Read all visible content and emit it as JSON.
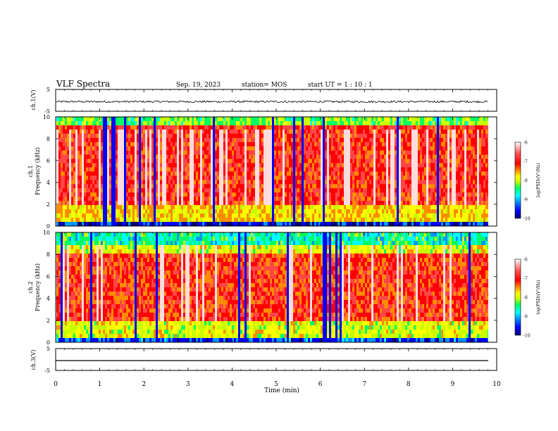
{
  "header": {
    "title": "VLF Spectra",
    "date": "Sep. 19, 2023",
    "station": "station= MOS",
    "start_ut": "start  UT  =   1 : 10 : 1"
  },
  "chart_data": [
    {
      "type": "line",
      "panel": "ch1-waveform",
      "ylabel": "ch.1(V)",
      "ylim": [
        -5,
        5
      ],
      "yticks": [
        "5",
        "-5"
      ],
      "xlim": [
        0,
        10
      ],
      "series": [
        {
          "values_note": "",
          "mean": -0.6
        }
      ]
    },
    {
      "type": "heatmap",
      "panel": "ch1-spectrogram",
      "ylabel_1": "ch.1",
      "ylabel_2": "Frequency (kHz)",
      "ylim": [
        0,
        10
      ],
      "yticks": [
        "0",
        "2",
        "4",
        "6",
        "8",
        "10"
      ],
      "xlim": [
        0,
        9.8
      ],
      "colorbar": {
        "label": "log(PSD)(V²/Hz)",
        "range": [
          -10,
          -6
        ],
        "ticks": [
          "-6",
          "-7",
          "-8",
          "-9",
          "-10"
        ]
      }
    },
    {
      "type": "heatmap",
      "panel": "ch2-spectrogram",
      "ylabel_1": "ch.2",
      "ylabel_2": "Frequency (kHz)",
      "ylim": [
        0,
        10
      ],
      "yticks": [
        "0",
        "2",
        "4",
        "6",
        "8",
        "10"
      ],
      "xlim": [
        0,
        9.8
      ],
      "colorbar": {
        "label": "log(PSD)(V²/Hz)",
        "range": [
          -10,
          -6
        ],
        "ticks": [
          "-6",
          "-7",
          "-8",
          "-9",
          "-10"
        ]
      }
    },
    {
      "type": "line",
      "panel": "ch3-waveform",
      "ylabel": "ch.3(V)",
      "ylim": [
        -5,
        5
      ],
      "yticks": [
        "5",
        "-5"
      ],
      "xlim": [
        0,
        10
      ],
      "series": [
        {
          "constant": -2.0
        }
      ]
    }
  ],
  "xaxis": {
    "label": "Time  (min)",
    "ticks": [
      "0",
      "1",
      "2",
      "3",
      "4",
      "5",
      "6",
      "7",
      "8",
      "9",
      "10"
    ]
  },
  "colors": {
    "colormap": [
      "#00006e",
      "#0000ff",
      "#0096ff",
      "#00ffff",
      "#00ff64",
      "#c8ff00",
      "#ffff00",
      "#ff8c00",
      "#ff0000",
      "#ff4646",
      "#ffdcdc"
    ]
  }
}
